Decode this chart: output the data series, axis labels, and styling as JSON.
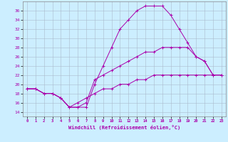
{
  "xlabel": "Windchill (Refroidissement éolien,°C)",
  "background_color": "#cceeff",
  "line_color": "#aa00aa",
  "ylim": [
    13,
    38
  ],
  "xlim": [
    -0.5,
    23.5
  ],
  "yticks": [
    14,
    16,
    18,
    20,
    22,
    24,
    26,
    28,
    30,
    32,
    34,
    36
  ],
  "xticks": [
    0,
    1,
    2,
    3,
    4,
    5,
    6,
    7,
    8,
    9,
    10,
    11,
    12,
    13,
    14,
    15,
    16,
    17,
    18,
    19,
    20,
    21,
    22,
    23
  ],
  "series": [
    {
      "x": [
        0,
        1,
        2,
        3,
        4,
        5,
        6,
        7,
        8,
        9,
        10,
        11,
        12,
        13,
        14,
        15,
        16,
        17,
        18,
        19,
        20,
        21,
        22,
        23
      ],
      "y": [
        19,
        19,
        18,
        18,
        17,
        15,
        15,
        15,
        20,
        24,
        28,
        32,
        34,
        36,
        37,
        37,
        37,
        35,
        32,
        29,
        26,
        25,
        22,
        22
      ]
    },
    {
      "x": [
        0,
        1,
        2,
        3,
        4,
        5,
        6,
        7,
        8,
        9,
        10,
        11,
        12,
        13,
        14,
        15,
        16,
        17,
        18,
        19,
        20,
        21,
        22,
        23
      ],
      "y": [
        19,
        19,
        18,
        18,
        17,
        15,
        15,
        16,
        21,
        22,
        23,
        24,
        25,
        26,
        27,
        27,
        28,
        28,
        28,
        28,
        26,
        25,
        22,
        22
      ]
    },
    {
      "x": [
        0,
        1,
        2,
        3,
        4,
        5,
        6,
        7,
        8,
        9,
        10,
        11,
        12,
        13,
        14,
        15,
        16,
        17,
        18,
        19,
        20,
        21,
        22,
        23
      ],
      "y": [
        19,
        19,
        18,
        18,
        17,
        15,
        16,
        17,
        18,
        19,
        19,
        20,
        20,
        21,
        21,
        22,
        22,
        22,
        22,
        22,
        22,
        22,
        22,
        22
      ]
    }
  ]
}
